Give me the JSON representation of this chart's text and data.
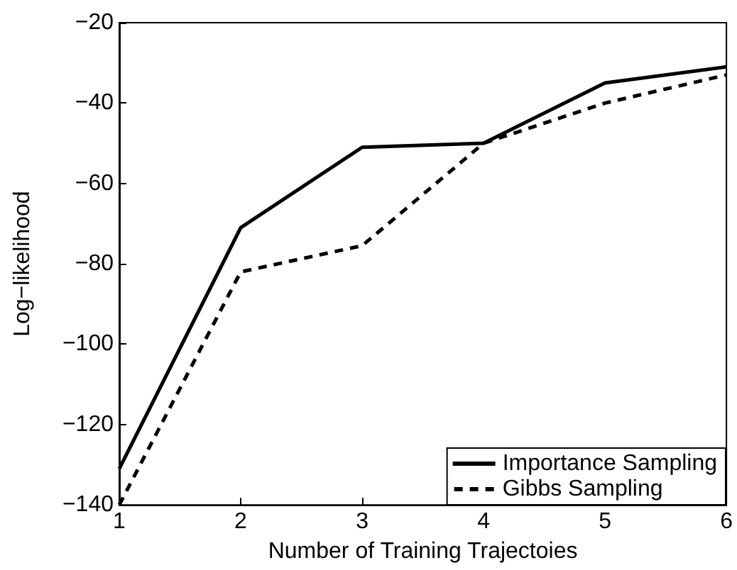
{
  "chart_data": {
    "type": "line",
    "xlabel": "Number of Training Trajectoies",
    "ylabel": "Log−likelihood",
    "x": [
      1,
      2,
      3,
      4,
      5,
      6
    ],
    "series": [
      {
        "name": "Importance Sampling",
        "color": "#000000",
        "line_style": "solid",
        "values": [
          -131,
          -71,
          -51,
          -50,
          -35,
          -31
        ]
      },
      {
        "name": "Gibbs Sampling",
        "color": "#000000",
        "line_style": "dashed",
        "values": [
          -140,
          -82,
          -75.5,
          -50,
          -40,
          -33
        ]
      }
    ],
    "xlim": [
      1,
      6
    ],
    "xticks": [
      1,
      2,
      3,
      4,
      5,
      6
    ],
    "ylim": [
      -140,
      -20
    ],
    "yticks": [
      -140,
      -120,
      -100,
      -80,
      -60,
      -40,
      -20
    ],
    "grid": false,
    "legend": "bottom right",
    "marker": "none"
  }
}
